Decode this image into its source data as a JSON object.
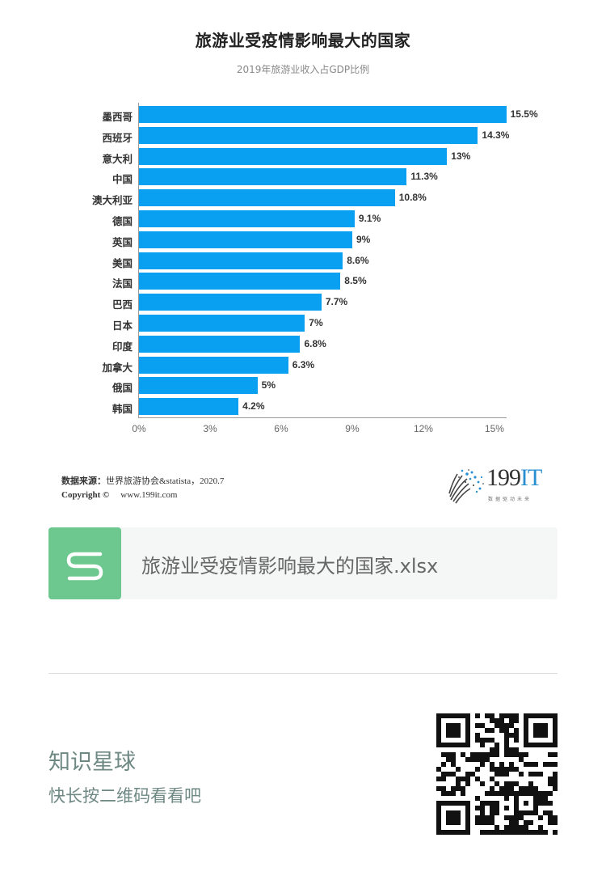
{
  "header": {
    "title": "旅游业受疫情影响最大的国家",
    "subtitle": "2019年旅游业收入占GDP比例"
  },
  "colors": {
    "bar": "#0aa0f2",
    "card_icon": "#6cc88e",
    "card_bg": "#f5f6f6",
    "planet_text": "#6e8883"
  },
  "chart_data": {
    "type": "bar",
    "orientation": "horizontal",
    "title": "旅游业受疫情影响最大的国家",
    "subtitle": "2019年旅游业收入占GDP比例",
    "xlabel": "",
    "ylabel": "",
    "categories": [
      "墨西哥",
      "西班牙",
      "意大利",
      "中国",
      "澳大利亚",
      "德国",
      "英国",
      "美国",
      "法国",
      "巴西",
      "日本",
      "印度",
      "加拿大",
      "俄国",
      "韩国"
    ],
    "values": [
      15.5,
      14.3,
      13,
      11.3,
      10.8,
      9.1,
      9,
      8.6,
      8.5,
      7.7,
      7,
      6.8,
      6.3,
      5,
      4.2
    ],
    "value_labels": [
      "15.5%",
      "14.3%",
      "13%",
      "11.3%",
      "10.8%",
      "9.1%",
      "9%",
      "8.6%",
      "8.5%",
      "7.7%",
      "7%",
      "6.8%",
      "6.3%",
      "5%",
      "4.2%"
    ],
    "xlim": [
      0,
      15.5
    ],
    "x_ticks": [
      "0%",
      "3%",
      "6%",
      "9%",
      "12%",
      "15%"
    ],
    "x_tick_values": [
      0,
      3,
      6,
      9,
      12,
      15
    ],
    "grid": false,
    "legend": null,
    "series": [
      {
        "name": "2019年旅游业收入占GDP比例",
        "values": [
          15.5,
          14.3,
          13,
          11.3,
          10.8,
          9.1,
          9,
          8.6,
          8.5,
          7.7,
          7,
          6.8,
          6.3,
          5,
          4.2
        ]
      }
    ]
  },
  "footer": {
    "source_label": "数据来源：",
    "source_text": "世界旅游协会&statista，2020.7",
    "copyright_label": "Copyright ©",
    "website": "www.199it.com",
    "logo_text_main": "199",
    "logo_text_accent": "IT",
    "logo_tagline": "数据驱动未来"
  },
  "file_card": {
    "icon": "spreadsheet-s-icon",
    "file_name": "旅游业受疫情影响最大的国家.xlsx"
  },
  "promo": {
    "title": "知识星球",
    "subtitle": "快长按二维码看看吧",
    "qr_icon": "qr-code"
  }
}
